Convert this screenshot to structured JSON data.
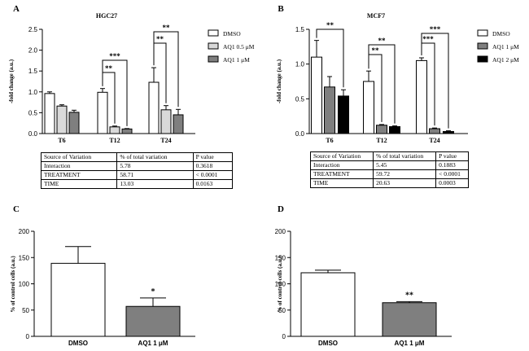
{
  "chart_data": [
    {
      "panel": "A",
      "title": "HGC27",
      "type": "bar",
      "ylabel": "-fold change (a.u.)",
      "ylim": [
        0,
        2.5
      ],
      "yticks": [
        "0.0",
        "0.5",
        "1.0",
        "1.5",
        "2.0",
        "2.5"
      ],
      "categories": [
        "T6",
        "T12",
        "T24"
      ],
      "series": [
        {
          "name": "DMSO",
          "legend_label": "DMSO",
          "fill": "#ffffff",
          "values": [
            0.96,
            0.99,
            1.23
          ],
          "errors": [
            0.04,
            0.09,
            0.35
          ]
        },
        {
          "name": "AQ1 0.5 µM",
          "legend_label": "AQ1  0.5 μM",
          "fill": "#d9d9d9",
          "values": [
            0.66,
            0.16,
            0.57
          ],
          "errors": [
            0.03,
            0.02,
            0.1
          ]
        },
        {
          "name": "AQ1 1 µM",
          "legend_label": "AQ1  1 μM",
          "fill": "#7f7f7f",
          "values": [
            0.51,
            0.11,
            0.45
          ],
          "errors": [
            0.05,
            0.01,
            0.13
          ]
        }
      ],
      "significance": [
        {
          "category": "T12",
          "series_pair": [
            0,
            1
          ],
          "label": "**"
        },
        {
          "category": "T12",
          "series_pair": [
            0,
            2
          ],
          "label": "***"
        },
        {
          "category": "T24",
          "series_pair": [
            0,
            1
          ],
          "label": "**"
        },
        {
          "category": "T24",
          "series_pair": [
            0,
            2
          ],
          "label": "**"
        }
      ],
      "stats_table": {
        "headers": [
          "Source of Variation",
          "% of total variation",
          "P value"
        ],
        "rows": [
          [
            "Interaction",
            "5.78",
            "0.3618"
          ],
          [
            "TREATMENT",
            "58.71",
            "< 0.0001"
          ],
          [
            "TIME",
            "13.03",
            "0.0163"
          ]
        ]
      }
    },
    {
      "panel": "B",
      "title": "MCF7",
      "type": "bar",
      "ylabel": "-fold change (a.u.)",
      "ylim": [
        0,
        1.5
      ],
      "yticks": [
        "0.0",
        "0.5",
        "1.0",
        "1.5"
      ],
      "categories": [
        "T6",
        "T12",
        "T24"
      ],
      "series": [
        {
          "name": "DMSO",
          "legend_label": "DMSO",
          "fill": "#ffffff",
          "values": [
            1.1,
            0.75,
            1.05
          ],
          "errors": [
            0.24,
            0.15,
            0.04
          ]
        },
        {
          "name": "AQ1 1 µM",
          "legend_label": "AQ1  1 μM",
          "fill": "#7f7f7f",
          "values": [
            0.67,
            0.12,
            0.07
          ],
          "errors": [
            0.15,
            0.01,
            0.01
          ]
        },
        {
          "name": "AQ1 2 µM",
          "legend_label": "AQ1  2 μM",
          "fill": "#000000",
          "values": [
            0.54,
            0.1,
            0.03
          ],
          "errors": [
            0.09,
            0.01,
            0.01
          ]
        }
      ],
      "significance": [
        {
          "category": "T6",
          "series_pair": [
            0,
            2
          ],
          "label": "**"
        },
        {
          "category": "T12",
          "series_pair": [
            0,
            1
          ],
          "label": "**"
        },
        {
          "category": "T12",
          "series_pair": [
            0,
            2
          ],
          "label": "**"
        },
        {
          "category": "T24",
          "series_pair": [
            0,
            1
          ],
          "label": "***"
        },
        {
          "category": "T24",
          "series_pair": [
            0,
            2
          ],
          "label": "***"
        }
      ],
      "stats_table": {
        "headers": [
          "Source of Variation",
          "% of total variation",
          "P value"
        ],
        "rows": [
          [
            "Interaction",
            "5.45",
            "0.1883"
          ],
          [
            "TREATMENT",
            "59.72",
            "< 0.0001"
          ],
          [
            "TIME",
            "20.63",
            "0.0003"
          ]
        ]
      }
    },
    {
      "panel": "C",
      "type": "bar",
      "ylabel": "% of control cells (a.u.)",
      "ylim": [
        0,
        200
      ],
      "yticks": [
        "0",
        "50",
        "100",
        "150",
        "200"
      ],
      "categories": [
        "DMSO",
        "AQ1  1 μM"
      ],
      "fills": [
        "#ffffff",
        "#7f7f7f"
      ],
      "values": [
        139,
        57
      ],
      "errors": [
        32,
        16
      ],
      "significance": [
        {
          "category_index": 1,
          "label": "*"
        }
      ]
    },
    {
      "panel": "D",
      "type": "bar",
      "ylabel": "% of control cells (a.u.)",
      "ylim": [
        0,
        200
      ],
      "yticks": [
        "0",
        "50",
        "100",
        "150",
        "200"
      ],
      "categories": [
        "DMSO",
        "AQ1  1 μM"
      ],
      "fills": [
        "#ffffff",
        "#7f7f7f"
      ],
      "values": [
        121,
        64
      ],
      "errors": [
        5,
        2
      ],
      "significance": [
        {
          "category_index": 1,
          "label": "**"
        }
      ]
    }
  ]
}
